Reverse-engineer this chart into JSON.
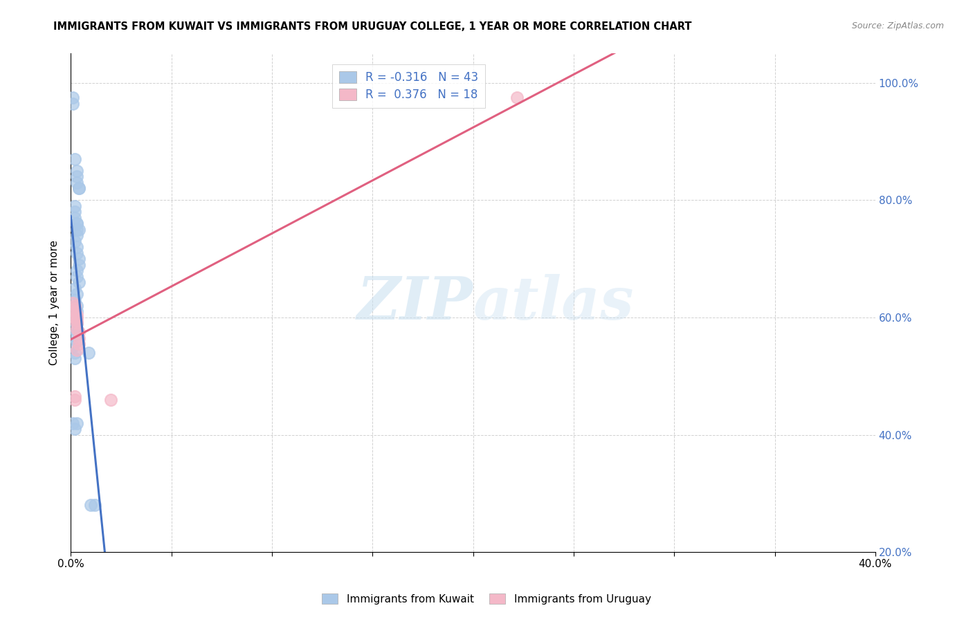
{
  "title": "IMMIGRANTS FROM KUWAIT VS IMMIGRANTS FROM URUGUAY COLLEGE, 1 YEAR OR MORE CORRELATION CHART",
  "source": "Source: ZipAtlas.com",
  "ylabel": "College, 1 year or more",
  "legend_kuwait": "Immigrants from Kuwait",
  "legend_uruguay": "Immigrants from Uruguay",
  "R_kuwait": -0.316,
  "N_kuwait": 43,
  "R_uruguay": 0.376,
  "N_uruguay": 18,
  "color_kuwait": "#aac8e8",
  "color_uruguay": "#f4b8c8",
  "color_trend_kuwait": "#4472c4",
  "color_trend_uruguay": "#e06080",
  "watermark_zip": "ZIP",
  "watermark_atlas": "atlas",
  "xmin": 0.0,
  "xmax": 0.4,
  "ymin": 0.2,
  "ymax": 1.05,
  "kuwait_x": [
    0.001,
    0.001,
    0.002,
    0.003,
    0.003,
    0.003,
    0.004,
    0.004,
    0.002,
    0.002,
    0.002,
    0.003,
    0.003,
    0.003,
    0.004,
    0.003,
    0.002,
    0.003,
    0.003,
    0.004,
    0.004,
    0.003,
    0.003,
    0.004,
    0.002,
    0.003,
    0.002,
    0.003,
    0.003,
    0.002,
    0.003,
    0.002,
    0.002,
    0.003,
    0.001,
    0.002,
    0.002,
    0.001,
    0.003,
    0.002,
    0.009,
    0.012,
    0.01
  ],
  "kuwait_y": [
    0.975,
    0.965,
    0.87,
    0.85,
    0.84,
    0.83,
    0.82,
    0.82,
    0.79,
    0.78,
    0.77,
    0.76,
    0.76,
    0.75,
    0.75,
    0.74,
    0.73,
    0.72,
    0.71,
    0.7,
    0.69,
    0.68,
    0.67,
    0.66,
    0.65,
    0.64,
    0.63,
    0.62,
    0.61,
    0.6,
    0.59,
    0.58,
    0.57,
    0.56,
    0.55,
    0.54,
    0.53,
    0.42,
    0.42,
    0.41,
    0.54,
    0.28,
    0.28
  ],
  "uruguay_x": [
    0.001,
    0.002,
    0.002,
    0.002,
    0.002,
    0.003,
    0.003,
    0.003,
    0.003,
    0.003,
    0.004,
    0.004,
    0.004,
    0.003,
    0.002,
    0.002,
    0.02,
    0.222
  ],
  "uruguay_y": [
    0.625,
    0.62,
    0.615,
    0.61,
    0.6,
    0.605,
    0.6,
    0.595,
    0.59,
    0.58,
    0.575,
    0.565,
    0.555,
    0.545,
    0.46,
    0.465,
    0.46,
    0.975
  ],
  "trend_kuwait_x0": 0.0,
  "trend_kuwait_x1": 0.115,
  "trend_kuwait_dash_x1": 0.4,
  "trend_uruguay_x0": 0.0,
  "trend_uruguay_x1": 0.4
}
